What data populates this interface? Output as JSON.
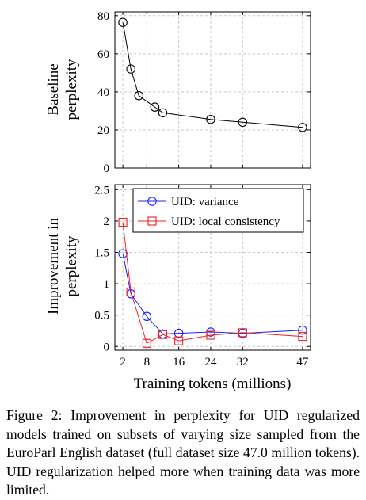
{
  "chart_data": [
    {
      "type": "line",
      "x": [
        2,
        4,
        6,
        10,
        12,
        24,
        32,
        47
      ],
      "series": [
        {
          "values": [
            76.5,
            52,
            38,
            32,
            29,
            25.5,
            24,
            21.3
          ],
          "color": "#000000",
          "marker": "circle"
        }
      ],
      "xticks": [
        2,
        8,
        16,
        24,
        32,
        47
      ],
      "yticks": [
        "0",
        "20",
        "40",
        "60",
        "80"
      ],
      "ylim": [
        0,
        82
      ],
      "xlim": [
        0,
        49
      ],
      "ylabel": [
        "Baseline",
        "perplexity"
      ],
      "xlabel": "",
      "grid": true
    },
    {
      "type": "line",
      "x": [
        2,
        4,
        8,
        12,
        16,
        24,
        32,
        47
      ],
      "series": [
        {
          "name": "UID: variance",
          "values": [
            1.48,
            0.84,
            0.48,
            0.2,
            0.21,
            0.23,
            0.21,
            0.26
          ],
          "color": "#1f1fff",
          "marker": "circle"
        },
        {
          "name": "UID: local consistency",
          "values": [
            1.98,
            0.87,
            0.05,
            0.19,
            0.09,
            0.18,
            0.22,
            0.16
          ],
          "color": "#ee2020",
          "marker": "square"
        }
      ],
      "xticks": [
        "2",
        "8",
        "16",
        "24",
        "32",
        "47"
      ],
      "yticks": [
        "0",
        "0.5",
        "1",
        "1.5",
        "2",
        "2.5"
      ],
      "ylim": [
        -0.06,
        2.58
      ],
      "xlim": [
        0,
        49
      ],
      "ylabel": [
        "Improvement in",
        "perplexity"
      ],
      "xlabel": "Training tokens (millions)",
      "grid": true,
      "legend": "top-right"
    }
  ],
  "caption": "Figure 2: Improvement in perplexity for UID regularized models trained on subsets of varying size sampled from the EuroParl English dataset (full dataset size 47.0 million tokens). UID regularization helped more when training data was more limited."
}
